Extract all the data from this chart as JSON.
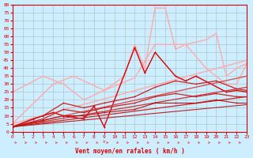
{
  "xlabel": "Vent moyen/en rafales ( km/h )",
  "background_color": "#cceeff",
  "grid_color": "#aabbbb",
  "xlim": [
    0,
    23
  ],
  "ylim": [
    0,
    80
  ],
  "yticks": [
    0,
    5,
    10,
    15,
    20,
    25,
    30,
    35,
    40,
    45,
    50,
    55,
    60,
    65,
    70,
    75,
    80
  ],
  "xticks": [
    0,
    1,
    2,
    3,
    4,
    5,
    6,
    7,
    8,
    9,
    10,
    11,
    12,
    13,
    14,
    15,
    16,
    17,
    18,
    19,
    20,
    21,
    22,
    23
  ],
  "series": [
    {
      "x": [
        0,
        3,
        5,
        7,
        9,
        11,
        12,
        13,
        14,
        15,
        16,
        17,
        19,
        21,
        22,
        23
      ],
      "y": [
        25,
        35,
        30,
        20,
        26,
        35,
        55,
        40,
        78,
        78,
        52,
        55,
        40,
        30,
        30,
        43
      ],
      "color": "#ffaaaa",
      "lw": 1.0,
      "marker": "+"
    },
    {
      "x": [
        0,
        4,
        6,
        9,
        12,
        14,
        16,
        17,
        19,
        20,
        21,
        22,
        23
      ],
      "y": [
        5,
        30,
        35,
        26,
        34,
        55,
        55,
        55,
        58,
        62,
        35,
        40,
        43
      ],
      "color": "#ffaaaa",
      "lw": 1.0,
      "marker": "+"
    },
    {
      "x": [
        0,
        23
      ],
      "y": [
        5,
        45
      ],
      "color": "#ffaaaa",
      "lw": 1.0,
      "marker": "+"
    },
    {
      "x": [
        0,
        2,
        3,
        4,
        5,
        7,
        8,
        9,
        12,
        13,
        14,
        16,
        17,
        18,
        21,
        22,
        23
      ],
      "y": [
        3,
        8,
        10,
        12,
        10,
        8,
        16,
        3,
        53,
        37,
        50,
        35,
        32,
        35,
        25,
        26,
        25
      ],
      "color": "#dd0000",
      "lw": 1.0,
      "marker": "+"
    },
    {
      "x": [
        0,
        23
      ],
      "y": [
        3,
        35
      ],
      "color": "#dd4444",
      "lw": 0.9,
      "marker": "+"
    },
    {
      "x": [
        0,
        23
      ],
      "y": [
        3,
        28
      ],
      "color": "#cc3333",
      "lw": 0.9,
      "marker": "+"
    },
    {
      "x": [
        0,
        23
      ],
      "y": [
        3,
        22
      ],
      "color": "#cc2222",
      "lw": 0.9,
      "marker": "+"
    },
    {
      "x": [
        0,
        23
      ],
      "y": [
        3,
        17
      ],
      "color": "#bb2222",
      "lw": 0.8,
      "marker": "+"
    },
    {
      "x": [
        0,
        3,
        5,
        7,
        9,
        12,
        14,
        16,
        18,
        20,
        22,
        23
      ],
      "y": [
        3,
        10,
        18,
        15,
        18,
        22,
        28,
        32,
        30,
        32,
        27,
        26
      ],
      "color": "#cc2222",
      "lw": 0.9,
      "marker": "+"
    },
    {
      "x": [
        0,
        3,
        5,
        7,
        9,
        12,
        14,
        16,
        18,
        20,
        22,
        23
      ],
      "y": [
        3,
        8,
        14,
        12,
        15,
        18,
        22,
        24,
        22,
        24,
        22,
        22
      ],
      "color": "#cc2222",
      "lw": 0.9,
      "marker": "+"
    },
    {
      "x": [
        0,
        3,
        5,
        7,
        9,
        12,
        14,
        16,
        18,
        20,
        22,
        23
      ],
      "y": [
        3,
        7,
        10,
        10,
        12,
        14,
        18,
        18,
        18,
        20,
        18,
        18
      ],
      "color": "#bb1111",
      "lw": 0.8,
      "marker": "+"
    }
  ],
  "arrow_color": "#ee4444"
}
